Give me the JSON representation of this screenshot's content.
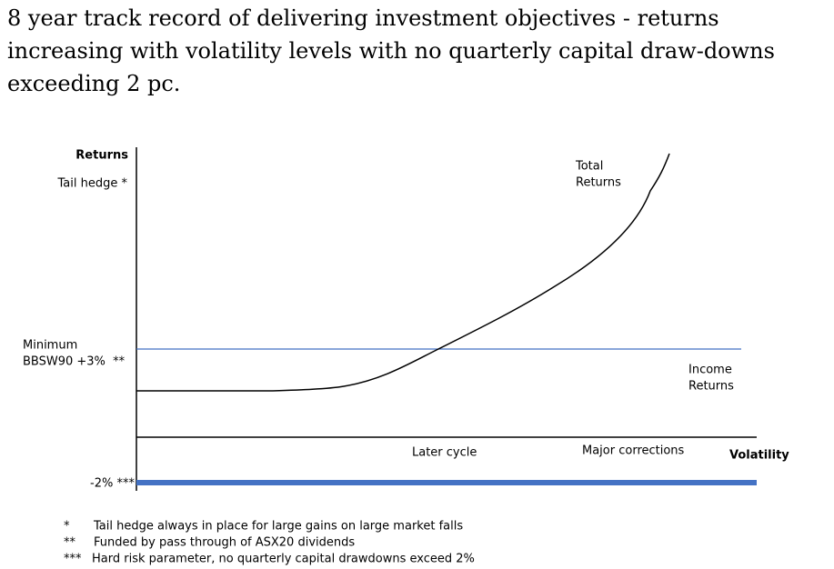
{
  "header": {
    "title_lines": [
      "8 year track record of delivering investment objectives - returns",
      "increasing with volatility levels with no quarterly capital draw-downs",
      "exceeding 2 pc."
    ]
  },
  "diagram": {
    "y_axis_label": "Returns",
    "tail_hedge_label": "Tail hedge *",
    "total_returns_label": [
      "Total",
      "Returns"
    ],
    "minimum_label": [
      "Minimum",
      "BBSW90 +3%  **"
    ],
    "income_returns_label": [
      "Income",
      "Returns"
    ],
    "later_cycle_label": "Later cycle",
    "major_corrections_label": "Major corrections",
    "x_axis_label": "Volatility",
    "floor_label": "-2% ***"
  },
  "footnotes": [
    {
      "marker": "*",
      "text": "Tail hedge always in place for large gains on large market falls"
    },
    {
      "marker": "**",
      "text": "Funded by pass through of ASX20 dividends"
    },
    {
      "marker": "***",
      "text": "Hard risk parameter, no quarterly capital drawdowns exceed 2%"
    }
  ]
}
